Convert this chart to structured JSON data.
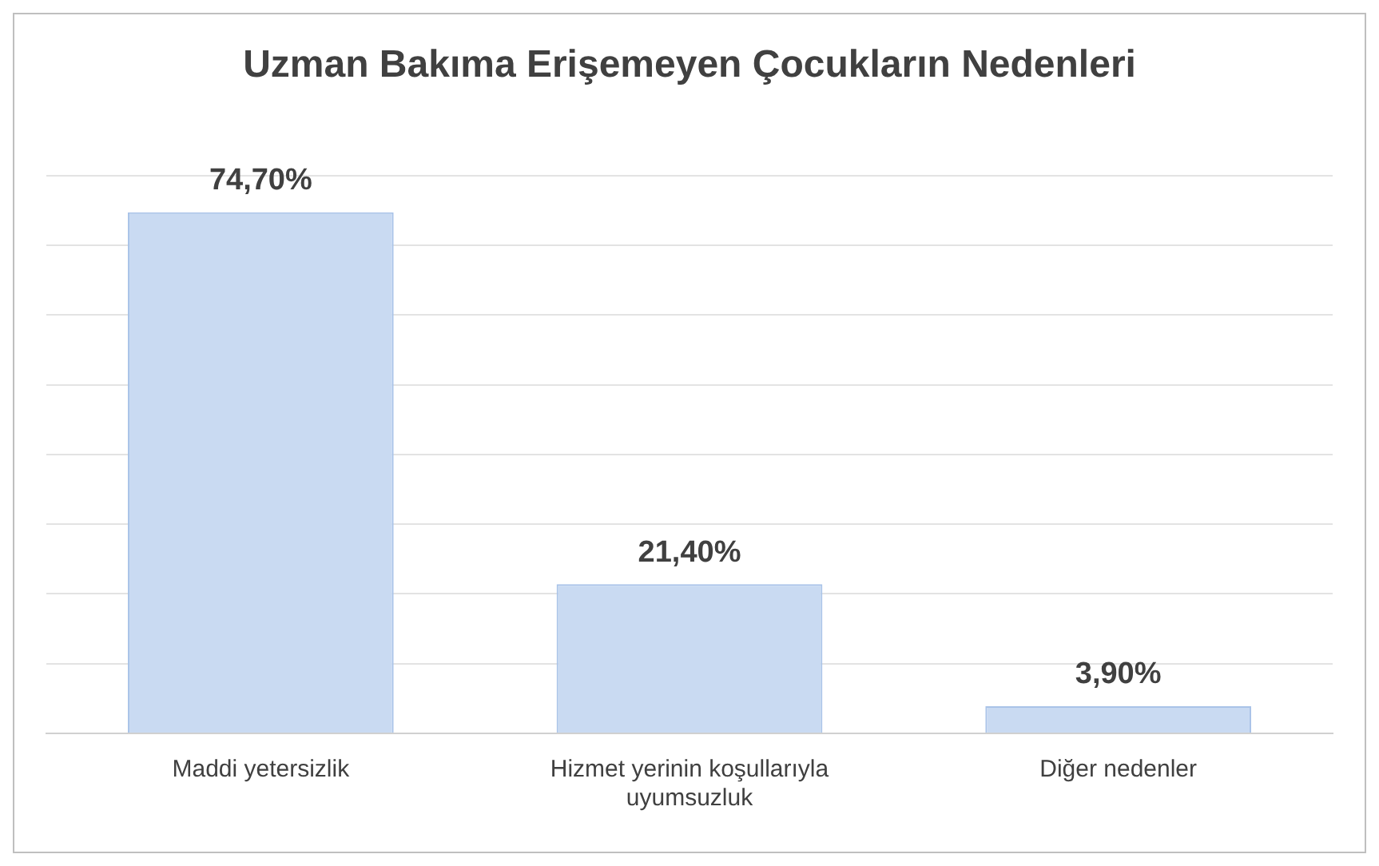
{
  "chart_data": {
    "type": "bar",
    "title": "Uzman Bakıma Erişemeyen Çocukların Nedenleri",
    "categories": [
      "Maddi yetersizlik",
      "Hizmet yerinin koşullarıyla uyumsuzluk",
      "Diğer nedenler"
    ],
    "values": [
      74.7,
      21.4,
      3.9
    ],
    "value_labels": [
      "74,70%",
      "21,40%",
      "3,90%"
    ],
    "color": "#c9daf2",
    "ylim": [
      0,
      80
    ],
    "yticks": [
      {
        "value": 0,
        "label": null
      },
      {
        "value": 10,
        "label": null
      },
      {
        "value": 20,
        "label": null
      },
      {
        "value": 30,
        "label": null
      },
      {
        "value": 40,
        "label": null
      },
      {
        "value": 50,
        "label": null
      },
      {
        "value": 60,
        "label": null
      },
      {
        "value": 70,
        "label": null
      },
      {
        "value": 80,
        "label": null
      }
    ],
    "tick_labels": "x",
    "grid": "y",
    "legend": false
  }
}
